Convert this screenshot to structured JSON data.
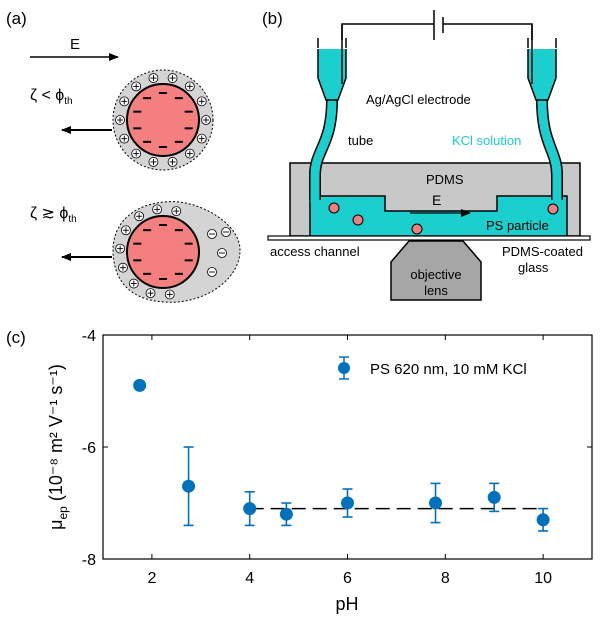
{
  "panel_a": {
    "label": "(a)",
    "field_label": "E",
    "cond_top_lhs": "ζ < ϕ",
    "cond_top_sub": "th",
    "cond_bottom_lhs": "ζ ≳ ϕ",
    "cond_bottom_sub": "th"
  },
  "panel_b": {
    "label": "(b)",
    "electrode": "Ag/AgCl electrode",
    "tube": "tube",
    "kcl": "KCl solution",
    "pdms": "PDMS",
    "field_label": "E",
    "ps_particle": "PS particle",
    "access_channel": "access channel",
    "objective_line1": "objective",
    "objective_line2": "lens",
    "glass_line1": "PDMS-coated",
    "glass_line2": "glass",
    "colors": {
      "solution": "#1ccfcf",
      "particle": "#f08080",
      "pdms": "#c8c8c8",
      "lens": "#a6a6a6"
    }
  },
  "panel_c": {
    "label": "(c)",
    "legend": "PS 620 nm, 10 mM KCl",
    "ylabel_mu": "μ",
    "ylabel_sub": "ep",
    "ylabel_units": "(10⁻⁸ m² V⁻¹ s⁻¹)",
    "xlabel": "pH"
  },
  "chart_data": {
    "type": "scatter",
    "x": [
      1.75,
      2.75,
      4.0,
      4.75,
      6.0,
      7.8,
      9.0,
      10.0
    ],
    "y": [
      -4.9,
      -6.7,
      -7.1,
      -7.2,
      -7.0,
      -7.0,
      -6.9,
      -7.3
    ],
    "yerr": [
      0.0,
      0.7,
      0.3,
      0.2,
      0.25,
      0.35,
      0.25,
      0.2
    ],
    "xlim": [
      1,
      11
    ],
    "ylim": [
      -8,
      -4
    ],
    "xticks": [
      2,
      4,
      6,
      8,
      10
    ],
    "yticks": [
      -8,
      -6,
      -4
    ],
    "fit_line": {
      "x": [
        4,
        10
      ],
      "y": [
        -7.1,
        -7.1
      ],
      "style": "dashed"
    },
    "series_color": "#0072bd"
  }
}
